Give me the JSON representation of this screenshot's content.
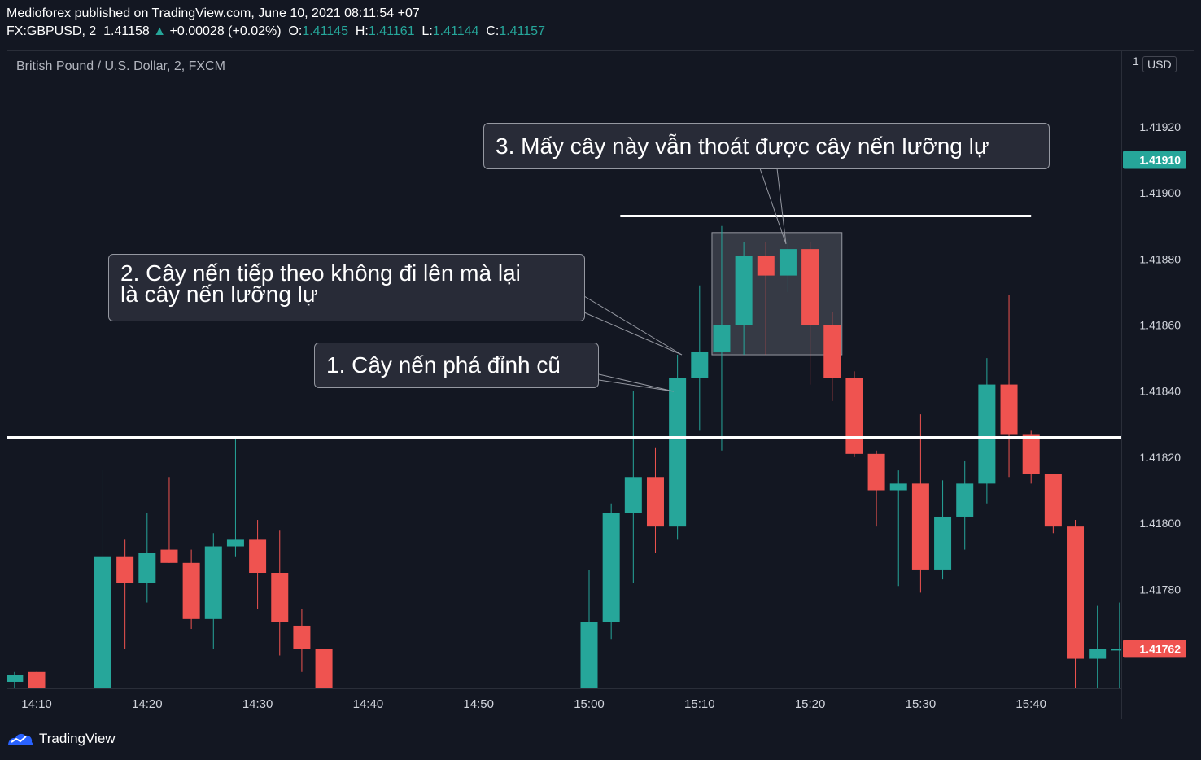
{
  "header": {
    "publisher": "Medioforex published on TradingView.com, June 10, 2021 08:11:54 +07",
    "symbol": "FX:GBPUSD, 2",
    "last": "1.41158",
    "change_arrow": "▲",
    "change": "+0.00028 (+0.02%)",
    "o_label": "O:",
    "o": "1.41145",
    "h_label": "H:",
    "h": "1.41161",
    "l_label": "L:",
    "l": "1.41144",
    "c_label": "C:",
    "c": "1.41157"
  },
  "chart_title": "British Pound / U.S. Dollar, 2, FXCM",
  "currency_badge": "USD",
  "footer": {
    "brand": "TradingView",
    "logo_icon": "tradingview-logo-icon"
  },
  "annotations": {
    "callout_1": "1. Cây nến phá đỉnh cũ",
    "callout_2": [
      "2. Cây nến tiếp theo không đi lên mà lại",
      "là cây nến lưỡng lự"
    ],
    "callout_3": "3. Mấy cây này vẫn thoát được cây nến lưỡng lự"
  },
  "colors": {
    "up": "#26a69a",
    "down": "#ef5350",
    "background": "#131722",
    "line": "#ffffff"
  },
  "chart_data": {
    "type": "candlestick",
    "title": "British Pound / U.S. Dollar, 2, FXCM",
    "xlabel": "",
    "ylabel": "",
    "ylim": [
      1.4175,
      1.4194
    ],
    "y_ticks": [
      "1.41920",
      "1.41900",
      "1.41880",
      "1.41860",
      "1.41840",
      "1.41820",
      "1.41800",
      "1.41780"
    ],
    "y_tick_top": "1",
    "x_ticks": [
      "14:10",
      "14:20",
      "14:30",
      "14:40",
      "14:50",
      "15:00",
      "15:10",
      "15:20",
      "15:30",
      "15:40"
    ],
    "price_labels": [
      {
        "value": 1.4191,
        "text": "1.41910",
        "color": "#26a69a"
      },
      {
        "value": 1.41762,
        "text": "1.41762",
        "color": "#ef5350"
      }
    ],
    "horizontal_lines": [
      {
        "value": 1.41826,
        "from": "14:08",
        "to": "15:48"
      },
      {
        "value": 1.41893,
        "from": "15:04",
        "to": "15:40"
      }
    ],
    "highlight_box": {
      "from": "15:12",
      "to": "15:22",
      "top": 1.41888,
      "bottom": 1.41851
    },
    "candles": [
      {
        "t": "14:08",
        "o": 1.41752,
        "h": 1.41755,
        "l": 1.41748,
        "c": 1.41754
      },
      {
        "t": "14:10",
        "o": 1.41755,
        "h": 1.41755,
        "l": 1.41748,
        "c": 1.4175
      },
      {
        "t": "14:16",
        "o": 1.4175,
        "h": 1.41816,
        "l": 1.41745,
        "c": 1.4179
      },
      {
        "t": "14:18",
        "o": 1.4179,
        "h": 1.41795,
        "l": 1.41762,
        "c": 1.41782
      },
      {
        "t": "14:20",
        "o": 1.41782,
        "h": 1.41803,
        "l": 1.41776,
        "c": 1.41791
      },
      {
        "t": "14:22",
        "o": 1.41792,
        "h": 1.41814,
        "l": 1.41788,
        "c": 1.41788
      },
      {
        "t": "14:24",
        "o": 1.41788,
        "h": 1.41792,
        "l": 1.41768,
        "c": 1.41771
      },
      {
        "t": "14:26",
        "o": 1.41771,
        "h": 1.41797,
        "l": 1.41762,
        "c": 1.41793
      },
      {
        "t": "14:28",
        "o": 1.41793,
        "h": 1.41826,
        "l": 1.4179,
        "c": 1.41795
      },
      {
        "t": "14:30",
        "o": 1.41795,
        "h": 1.41801,
        "l": 1.41774,
        "c": 1.41785
      },
      {
        "t": "14:32",
        "o": 1.41785,
        "h": 1.41798,
        "l": 1.4176,
        "c": 1.4177
      },
      {
        "t": "14:34",
        "o": 1.41769,
        "h": 1.41774,
        "l": 1.41755,
        "c": 1.41762
      },
      {
        "t": "14:36",
        "o": 1.41762,
        "h": 1.41762,
        "l": 1.4174,
        "c": 1.4174
      },
      {
        "t": "15:00",
        "o": 1.4174,
        "h": 1.41786,
        "l": 1.4174,
        "c": 1.4177
      },
      {
        "t": "15:02",
        "o": 1.4177,
        "h": 1.41806,
        "l": 1.41765,
        "c": 1.41803
      },
      {
        "t": "15:04",
        "o": 1.41803,
        "h": 1.4184,
        "l": 1.41782,
        "c": 1.41814
      },
      {
        "t": "15:06",
        "o": 1.41814,
        "h": 1.41823,
        "l": 1.41791,
        "c": 1.41799
      },
      {
        "t": "15:08",
        "o": 1.41799,
        "h": 1.41851,
        "l": 1.41795,
        "c": 1.41844
      },
      {
        "t": "15:10",
        "o": 1.41844,
        "h": 1.41872,
        "l": 1.41828,
        "c": 1.41852
      },
      {
        "t": "15:12",
        "o": 1.41852,
        "h": 1.4189,
        "l": 1.41822,
        "c": 1.4186
      },
      {
        "t": "15:14",
        "o": 1.4186,
        "h": 1.41885,
        "l": 1.41851,
        "c": 1.41881
      },
      {
        "t": "15:16",
        "o": 1.41881,
        "h": 1.41885,
        "l": 1.41851,
        "c": 1.41875
      },
      {
        "t": "15:18",
        "o": 1.41875,
        "h": 1.41886,
        "l": 1.4187,
        "c": 1.41883
      },
      {
        "t": "15:20",
        "o": 1.41883,
        "h": 1.41885,
        "l": 1.41842,
        "c": 1.4186
      },
      {
        "t": "15:22",
        "o": 1.4186,
        "h": 1.41864,
        "l": 1.41837,
        "c": 1.41844
      },
      {
        "t": "15:24",
        "o": 1.41844,
        "h": 1.41846,
        "l": 1.4182,
        "c": 1.41821
      },
      {
        "t": "15:26",
        "o": 1.41821,
        "h": 1.41822,
        "l": 1.41799,
        "c": 1.4181
      },
      {
        "t": "15:28",
        "o": 1.4181,
        "h": 1.41816,
        "l": 1.41781,
        "c": 1.41812
      },
      {
        "t": "15:30",
        "o": 1.41812,
        "h": 1.41833,
        "l": 1.41779,
        "c": 1.41786
      },
      {
        "t": "15:32",
        "o": 1.41786,
        "h": 1.41813,
        "l": 1.41783,
        "c": 1.41802
      },
      {
        "t": "15:34",
        "o": 1.41802,
        "h": 1.41819,
        "l": 1.41792,
        "c": 1.41812
      },
      {
        "t": "15:36",
        "o": 1.41812,
        "h": 1.4185,
        "l": 1.41806,
        "c": 1.41842
      },
      {
        "t": "15:38",
        "o": 1.41842,
        "h": 1.41869,
        "l": 1.41814,
        "c": 1.41827
      },
      {
        "t": "15:40",
        "o": 1.41827,
        "h": 1.41828,
        "l": 1.41812,
        "c": 1.41815
      },
      {
        "t": "15:42",
        "o": 1.41815,
        "h": 1.41815,
        "l": 1.41797,
        "c": 1.41799
      },
      {
        "t": "15:44",
        "o": 1.41799,
        "h": 1.41801,
        "l": 1.4175,
        "c": 1.41759
      },
      {
        "t": "15:46",
        "o": 1.41759,
        "h": 1.41775,
        "l": 1.41745,
        "c": 1.41762
      },
      {
        "t": "15:48",
        "o": 1.41762,
        "h": 1.41776,
        "l": 1.4175,
        "c": 1.41762
      }
    ]
  }
}
